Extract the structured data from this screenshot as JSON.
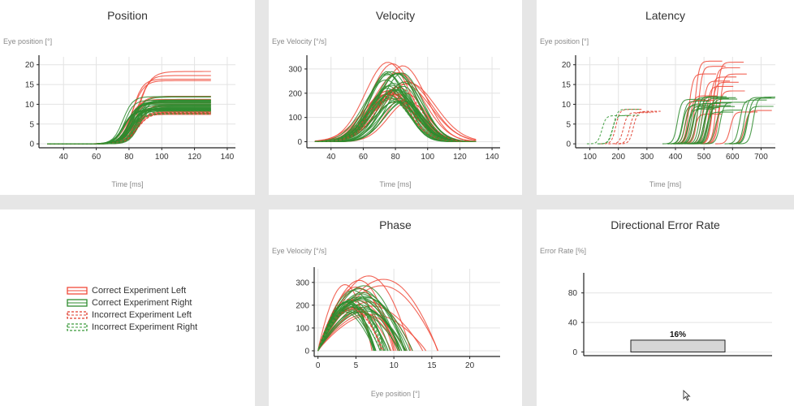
{
  "colors": {
    "correct_left": "#f04a3a",
    "correct_right": "#2e8b2e",
    "incorrect_left": "#e03c2c",
    "incorrect_right": "#3a9a3a",
    "bar_fill": "#d6d6d6",
    "grid": "#e3e3e3"
  },
  "legend": {
    "items": [
      {
        "label": "Correct Experiment Left",
        "color": "#f04a3a",
        "dashed": false
      },
      {
        "label": "Correct Experiment Right",
        "color": "#2e8b2e",
        "dashed": false
      },
      {
        "label": "Incorrect Experiment Left",
        "color": "#e03c2c",
        "dashed": true
      },
      {
        "label": "Incorrect Experiment Right",
        "color": "#3a9a3a",
        "dashed": true
      }
    ]
  },
  "chart_data": [
    {
      "id": "position",
      "type": "line",
      "title": "Position",
      "xlabel": "Time [ms]",
      "ylabel": "Eye position [°]",
      "xlim": [
        25,
        145
      ],
      "ylim": [
        -1,
        22
      ],
      "xticks": [
        40,
        60,
        80,
        100,
        120,
        140
      ],
      "yticks": [
        0,
        5,
        10,
        15,
        20
      ],
      "grid": true,
      "series_groups": [
        {
          "name": "Correct Experiment Left",
          "color": "#f04a3a",
          "dashed": false,
          "n": 14,
          "x": [
            30,
            130
          ],
          "shape": "sigmoid",
          "amp_range": [
            7,
            21
          ],
          "center": [
            78,
            88
          ],
          "width": [
            12,
            16
          ]
        },
        {
          "name": "Correct Experiment Right",
          "color": "#2e8b2e",
          "dashed": false,
          "n": 30,
          "x": [
            30,
            130
          ],
          "shape": "sigmoid",
          "amp_range": [
            8,
            12
          ],
          "center": [
            76,
            86
          ],
          "width": [
            11,
            14
          ]
        },
        {
          "name": "Incorrect Experiment Left",
          "color": "#e03c2c",
          "dashed": true,
          "n": 3,
          "x": [
            30,
            130
          ],
          "shape": "sigmoid",
          "amp_range": [
            7,
            9
          ],
          "center": [
            82,
            88
          ],
          "width": [
            13,
            15
          ]
        },
        {
          "name": "Incorrect Experiment Right",
          "color": "#3a9a3a",
          "dashed": true,
          "n": 3,
          "x": [
            30,
            130
          ],
          "shape": "sigmoid",
          "amp_range": [
            7,
            9
          ],
          "center": [
            80,
            86
          ],
          "width": [
            12,
            14
          ]
        }
      ]
    },
    {
      "id": "velocity",
      "type": "line",
      "title": "Velocity",
      "xlabel": "Time [ms]",
      "ylabel": "Eye Velocity [°/s]",
      "xlim": [
        25,
        145
      ],
      "ylim": [
        -25,
        350
      ],
      "xticks": [
        40,
        60,
        80,
        100,
        120,
        140
      ],
      "yticks": [
        0,
        100,
        200,
        300
      ],
      "grid": true,
      "series_groups": [
        {
          "name": "Correct Experiment Left",
          "color": "#f04a3a",
          "dashed": false,
          "n": 16,
          "x": [
            30,
            130
          ],
          "shape": "gauss",
          "amp_range": [
            150,
            340
          ],
          "center": [
            74,
            92
          ],
          "width": [
            14,
            22
          ]
        },
        {
          "name": "Correct Experiment Right",
          "color": "#2e8b2e",
          "dashed": false,
          "n": 30,
          "x": [
            30,
            130
          ],
          "shape": "gauss",
          "amp_range": [
            160,
            290
          ],
          "center": [
            74,
            86
          ],
          "width": [
            14,
            18
          ]
        },
        {
          "name": "Incorrect Experiment Left",
          "color": "#e03c2c",
          "dashed": true,
          "n": 3,
          "x": [
            30,
            130
          ],
          "shape": "gauss",
          "amp_range": [
            170,
            230
          ],
          "center": [
            76,
            84
          ],
          "width": [
            15,
            18
          ]
        },
        {
          "name": "Incorrect Experiment Right",
          "color": "#3a9a3a",
          "dashed": true,
          "n": 3,
          "x": [
            30,
            130
          ],
          "shape": "gauss",
          "amp_range": [
            170,
            230
          ],
          "center": [
            74,
            82
          ],
          "width": [
            15,
            18
          ]
        }
      ]
    },
    {
      "id": "latency",
      "type": "line",
      "title": "Latency",
      "xlabel": "Time [ms]",
      "ylabel": "Eye position [°]",
      "xlim": [
        50,
        750
      ],
      "ylim": [
        -1,
        22
      ],
      "xticks": [
        100,
        200,
        300,
        400,
        500,
        600,
        700
      ],
      "yticks": [
        0,
        5,
        10,
        15,
        20
      ],
      "grid": true,
      "series_groups": [
        {
          "name": "Correct Experiment Left",
          "color": "#f04a3a",
          "dashed": false,
          "n": 16,
          "onset_range": [
            400,
            690
          ],
          "amp_range": [
            7,
            21
          ],
          "rise": 45
        },
        {
          "name": "Correct Experiment Right",
          "color": "#2e8b2e",
          "dashed": false,
          "n": 26,
          "onset_range": [
            380,
            700
          ],
          "amp_range": [
            8,
            12
          ],
          "rise": 45
        },
        {
          "name": "Incorrect Experiment Left",
          "color": "#e03c2c",
          "dashed": true,
          "n": 4,
          "onset_range": [
            100,
            310
          ],
          "amp_range": [
            7,
            9
          ],
          "rise": 45
        },
        {
          "name": "Incorrect Experiment Right",
          "color": "#3a9a3a",
          "dashed": true,
          "n": 3,
          "onset_range": [
            110,
            260
          ],
          "amp_range": [
            7,
            9
          ],
          "rise": 45
        }
      ]
    },
    {
      "id": "phase",
      "type": "line",
      "title": "Phase",
      "xlabel": "Eye position [°]",
      "ylabel": "Eye Velocity [°/s]",
      "xlim": [
        -0.5,
        24
      ],
      "ylim": [
        -25,
        360
      ],
      "xticks": [
        0,
        5,
        10,
        15,
        20
      ],
      "yticks": [
        0,
        100,
        200,
        300
      ],
      "grid": true,
      "series_groups": [
        {
          "name": "Correct Experiment Left",
          "color": "#f04a3a",
          "dashed": false,
          "n": 14,
          "amp_range": [
            7,
            21
          ],
          "peak_range": [
            150,
            340
          ]
        },
        {
          "name": "Correct Experiment Right",
          "color": "#2e8b2e",
          "dashed": false,
          "n": 28,
          "amp_range": [
            7,
            12.5
          ],
          "peak_range": [
            160,
            290
          ]
        },
        {
          "name": "Incorrect Experiment Left",
          "color": "#e03c2c",
          "dashed": true,
          "n": 3,
          "amp_range": [
            7,
            9
          ],
          "peak_range": [
            170,
            230
          ]
        },
        {
          "name": "Incorrect Experiment Right",
          "color": "#3a9a3a",
          "dashed": true,
          "n": 3,
          "amp_range": [
            7,
            9
          ],
          "peak_range": [
            170,
            230
          ]
        }
      ]
    },
    {
      "id": "error_rate",
      "type": "bar",
      "title": "Directional Error Rate",
      "ylabel": "Error Rate [%]",
      "xlabel": "",
      "ylim": [
        -5,
        105
      ],
      "yticks": [
        0,
        40,
        80
      ],
      "categories": [
        ""
      ],
      "values": [
        16
      ],
      "value_labels": [
        "16%"
      ],
      "grid": true
    }
  ]
}
